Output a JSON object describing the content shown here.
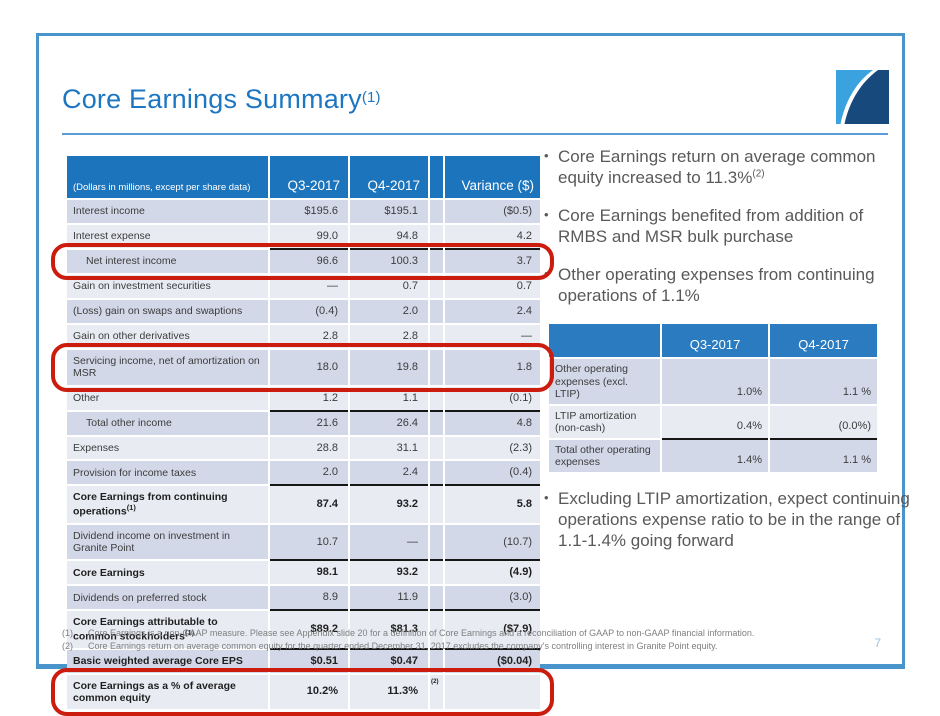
{
  "slide": {
    "title": "Core Earnings Summary",
    "title_sup": "(1)",
    "page_number": "7"
  },
  "colors": {
    "accent_blue": "#1d76c2",
    "table_header_blue": "#1b74bc",
    "stripe_dark": "#d3d8e8",
    "stripe_light": "#e9ebf3",
    "annotation_red": "#cc1c0e",
    "frame_blue": "#4a94cc",
    "logo_light_blue": "#3aa2de",
    "logo_navy": "#17497c"
  },
  "main_table": {
    "header": [
      "(Dollars in millions, except per share data)",
      "Q3-2017",
      "Q4-2017",
      "",
      "Variance ($)"
    ],
    "rows": [
      {
        "label": "Interest income",
        "q3": "$195.6",
        "q4": "$195.1",
        "variance": "($0.5)",
        "shade": "dark"
      },
      {
        "label": "Interest expense",
        "q3": "99.0",
        "q4": "94.8",
        "variance": "4.2",
        "shade": "light"
      },
      {
        "label": "Net interest income",
        "q3": "96.6",
        "q4": "100.3",
        "variance": "3.7",
        "shade": "dark",
        "indent": true,
        "topline": true,
        "circled": true
      },
      {
        "label": "Gain on investment securities",
        "q3": "—",
        "q4": "0.7",
        "variance": "0.7",
        "shade": "light"
      },
      {
        "label": "(Loss) gain on swaps and swaptions",
        "q3": "(0.4)",
        "q4": "2.0",
        "variance": "2.4",
        "shade": "dark"
      },
      {
        "label": "Gain on other derivatives",
        "q3": "2.8",
        "q4": "2.8",
        "variance": "—",
        "shade": "light"
      },
      {
        "label": "Servicing income, net of amortization on MSR",
        "q3": "18.0",
        "q4": "19.8",
        "variance": "1.8",
        "shade": "dark",
        "circled": true
      },
      {
        "label": "Other",
        "q3": "1.2",
        "q4": "1.1",
        "variance": "(0.1)",
        "shade": "light"
      },
      {
        "label": "Total other income",
        "q3": "21.6",
        "q4": "26.4",
        "variance": "4.8",
        "shade": "dark",
        "indent": true,
        "topline": true
      },
      {
        "label": "Expenses",
        "q3": "28.8",
        "q4": "31.1",
        "variance": "(2.3)",
        "shade": "light"
      },
      {
        "label": "Provision for income taxes",
        "q3": "2.0",
        "q4": "2.4",
        "variance": "(0.4)",
        "shade": "dark"
      },
      {
        "label": "Core Earnings from continuing operations",
        "label_sup": "(1)",
        "q3": "87.4",
        "q4": "93.2",
        "variance": "5.8",
        "shade": "light",
        "bold": true,
        "topline": true
      },
      {
        "label": "Dividend income on investment in Granite Point",
        "q3": "10.7",
        "q4": "—",
        "variance": "(10.7)",
        "shade": "dark"
      },
      {
        "label": "Core Earnings",
        "q3": "98.1",
        "q4": "93.2",
        "variance": "(4.9)",
        "shade": "light",
        "bold": true,
        "topline": true
      },
      {
        "label": "Dividends on preferred stock",
        "q3": "8.9",
        "q4": "11.9",
        "variance": "(3.0)",
        "shade": "dark"
      },
      {
        "label": "Core Earnings attributable to common stockholders",
        "label_sup": "(1)",
        "q3": "$89.2",
        "q4": "$81.3",
        "variance": "($7.9)",
        "shade": "light",
        "bold": true,
        "topline": true
      },
      {
        "label": "Basic weighted average Core EPS",
        "q3": "$0.51",
        "q4": "$0.47",
        "variance": "($0.04)",
        "shade": "dark",
        "bold": true,
        "topline": true
      },
      {
        "label": "Core Earnings as a % of average common equity",
        "q3": "10.2%",
        "q4": "11.3%",
        "spacer_note": "(2)",
        "variance": "",
        "shade": "light",
        "bold": true,
        "circled": true
      }
    ]
  },
  "bullets_above_table": [
    {
      "text": "Core Earnings return on average common equity increased to 11.3%",
      "sup": "(2)"
    },
    {
      "text": "Core Earnings benefited from addition of RMBS and MSR bulk purchase"
    },
    {
      "text": "Other operating expenses from continuing operations of 1.1%"
    }
  ],
  "bullets_below_table": [
    {
      "text": "Excluding LTIP amortization, expect continuing operations expense ratio to be in the range of 1.1-1.4% going forward"
    }
  ],
  "expense_table": {
    "header": [
      "",
      "Q3-2017",
      "Q4-2017"
    ],
    "rows": [
      {
        "label": "Other operating expenses (excl. LTIP)",
        "q3": "1.0%",
        "q4": "1.1 %",
        "shade": "dark"
      },
      {
        "label": "LTIP amortization (non-cash)",
        "q3": "0.4%",
        "q4": "(0.0%)",
        "shade": "light"
      },
      {
        "label": "Total other operating expenses",
        "q3": "1.4%",
        "q4": "1.1 %",
        "shade": "dark",
        "topline": true
      }
    ]
  },
  "footnotes": [
    {
      "num": "(1)",
      "text": "Core Earnings is a non-GAAP measure. Please see Appendix slide 20 for a definition of Core Earnings and a reconciliation of GAAP to non-GAAP financial information."
    },
    {
      "num": "(2)",
      "text": "Core Earnings return on average common equity for the quarter ended December 31, 2017 excludes the company's controlling interest in Granite Point equity."
    }
  ]
}
